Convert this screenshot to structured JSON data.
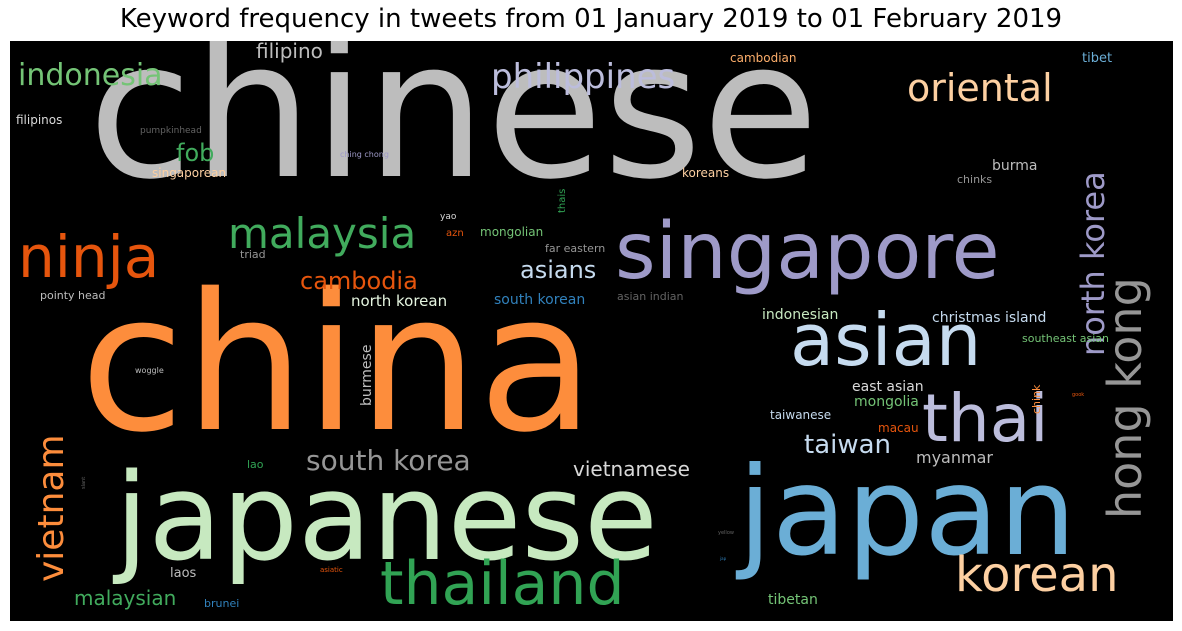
{
  "title": "Keyword frequency in tweets from 01 January 2019 to 01 February 2019",
  "chart_data": {
    "type": "wordcloud",
    "title": "Keyword frequency in tweets from 01 January 2019 to 01 February 2019",
    "background": "#000000",
    "words": [
      {
        "text": "chinese",
        "weight": 100,
        "color": "#bdbdbd"
      },
      {
        "text": "china",
        "weight": 99,
        "color": "#fd8d3c"
      },
      {
        "text": "japan",
        "weight": 70,
        "color": "#6baed6"
      },
      {
        "text": "japanese",
        "weight": 68,
        "color": "#c7e9c0"
      },
      {
        "text": "singapore",
        "weight": 45,
        "color": "#9e9ac8"
      },
      {
        "text": "asian",
        "weight": 40,
        "color": "#c6dbef"
      },
      {
        "text": "thai",
        "weight": 38,
        "color": "#bcbddc"
      },
      {
        "text": "thailand",
        "weight": 35,
        "color": "#31a354"
      },
      {
        "text": "ninja",
        "weight": 33,
        "color": "#e6550d"
      },
      {
        "text": "korean",
        "weight": 30,
        "color": "#fdd0a2"
      },
      {
        "text": "hong kong",
        "weight": 29,
        "color": "#969696"
      },
      {
        "text": "vietnam",
        "weight": 24,
        "color": "#fd8d3c"
      },
      {
        "text": "malaysia",
        "weight": 24,
        "color": "#41ab5d"
      },
      {
        "text": "north korea",
        "weight": 22,
        "color": "#9e9ac8"
      },
      {
        "text": "oriental",
        "weight": 20,
        "color": "#fdd0a2"
      },
      {
        "text": "philippines",
        "weight": 19,
        "color": "#bcbddc"
      },
      {
        "text": "south korea",
        "weight": 16,
        "color": "#969696"
      },
      {
        "text": "indonesia",
        "weight": 16,
        "color": "#74c476"
      },
      {
        "text": "taiwan",
        "weight": 14,
        "color": "#c6dbef"
      },
      {
        "text": "cambodia",
        "weight": 13,
        "color": "#e6550d"
      },
      {
        "text": "asians",
        "weight": 13,
        "color": "#c6dbef"
      },
      {
        "text": "fob",
        "weight": 13,
        "color": "#41ab5d"
      },
      {
        "text": "vietnamese",
        "weight": 12,
        "color": "#d9d9d9"
      },
      {
        "text": "malaysian",
        "weight": 12,
        "color": "#41ab5d"
      },
      {
        "text": "filipino",
        "weight": 12,
        "color": "#bdbdbd"
      },
      {
        "text": "myanmar",
        "weight": 10,
        "color": "#bdbdbd"
      },
      {
        "text": "north korean",
        "weight": 9,
        "color": "#e5f5e0"
      },
      {
        "text": "indonesian",
        "weight": 9,
        "color": "#c7e9c0"
      },
      {
        "text": "christmas island",
        "weight": 8,
        "color": "#c6dbef"
      },
      {
        "text": "east asian",
        "weight": 8,
        "color": "#d9d9d9"
      },
      {
        "text": "mongolia",
        "weight": 8,
        "color": "#74c476"
      },
      {
        "text": "south korean",
        "weight": 8,
        "color": "#3182bd"
      },
      {
        "text": "burma",
        "weight": 8,
        "color": "#bdbdbd"
      },
      {
        "text": "burmese",
        "weight": 8,
        "color": "#bdbdbd"
      },
      {
        "text": "tibetan",
        "weight": 8,
        "color": "#74c476"
      },
      {
        "text": "laos",
        "weight": 7,
        "color": "#bdbdbd"
      },
      {
        "text": "taiwanese",
        "weight": 7,
        "color": "#c6dbef"
      },
      {
        "text": "macau",
        "weight": 7,
        "color": "#e6550d"
      },
      {
        "text": "mongolian",
        "weight": 7,
        "color": "#74c476"
      },
      {
        "text": "tibet",
        "weight": 7,
        "color": "#6baed6"
      },
      {
        "text": "cambodian",
        "weight": 6,
        "color": "#fdae6b"
      },
      {
        "text": "filipinos",
        "weight": 6,
        "color": "#d9d9d9"
      },
      {
        "text": "koreans",
        "weight": 6,
        "color": "#fdd0a2"
      },
      {
        "text": "singaporean",
        "weight": 6,
        "color": "#fdd0a2"
      },
      {
        "text": "chinks",
        "weight": 6,
        "color": "#969696"
      },
      {
        "text": "southeast asian",
        "weight": 6,
        "color": "#74c476"
      },
      {
        "text": "far eastern",
        "weight": 6,
        "color": "#969696"
      },
      {
        "text": "asian indian",
        "weight": 6,
        "color": "#636363"
      },
      {
        "text": "brunei",
        "weight": 6,
        "color": "#3182bd"
      },
      {
        "text": "pointy head",
        "weight": 5,
        "color": "#bdbdbd"
      },
      {
        "text": "triad",
        "weight": 5,
        "color": "#969696"
      },
      {
        "text": "lao",
        "weight": 5,
        "color": "#31a354"
      },
      {
        "text": "chink",
        "weight": 5,
        "color": "#fd8d3c"
      },
      {
        "text": "thais",
        "weight": 5,
        "color": "#31a354"
      },
      {
        "text": "azn",
        "weight": 4,
        "color": "#e6550d"
      },
      {
        "text": "yao",
        "weight": 4,
        "color": "#d9d9d9"
      },
      {
        "text": "pumpkinhead",
        "weight": 4,
        "color": "#636363"
      },
      {
        "text": "ching chong",
        "weight": 3,
        "color": "#9e9ac8"
      },
      {
        "text": "woggle",
        "weight": 3,
        "color": "#bdbdbd"
      },
      {
        "text": "asiatic",
        "weight": 3,
        "color": "#e6550d"
      },
      {
        "text": "gook",
        "weight": 2,
        "color": "#e6550d"
      },
      {
        "text": "slant",
        "weight": 2,
        "color": "#636363"
      },
      {
        "text": "yellow",
        "weight": 2,
        "color": "#636363"
      },
      {
        "text": "jap",
        "weight": 2,
        "color": "#3182bd"
      }
    ]
  }
}
